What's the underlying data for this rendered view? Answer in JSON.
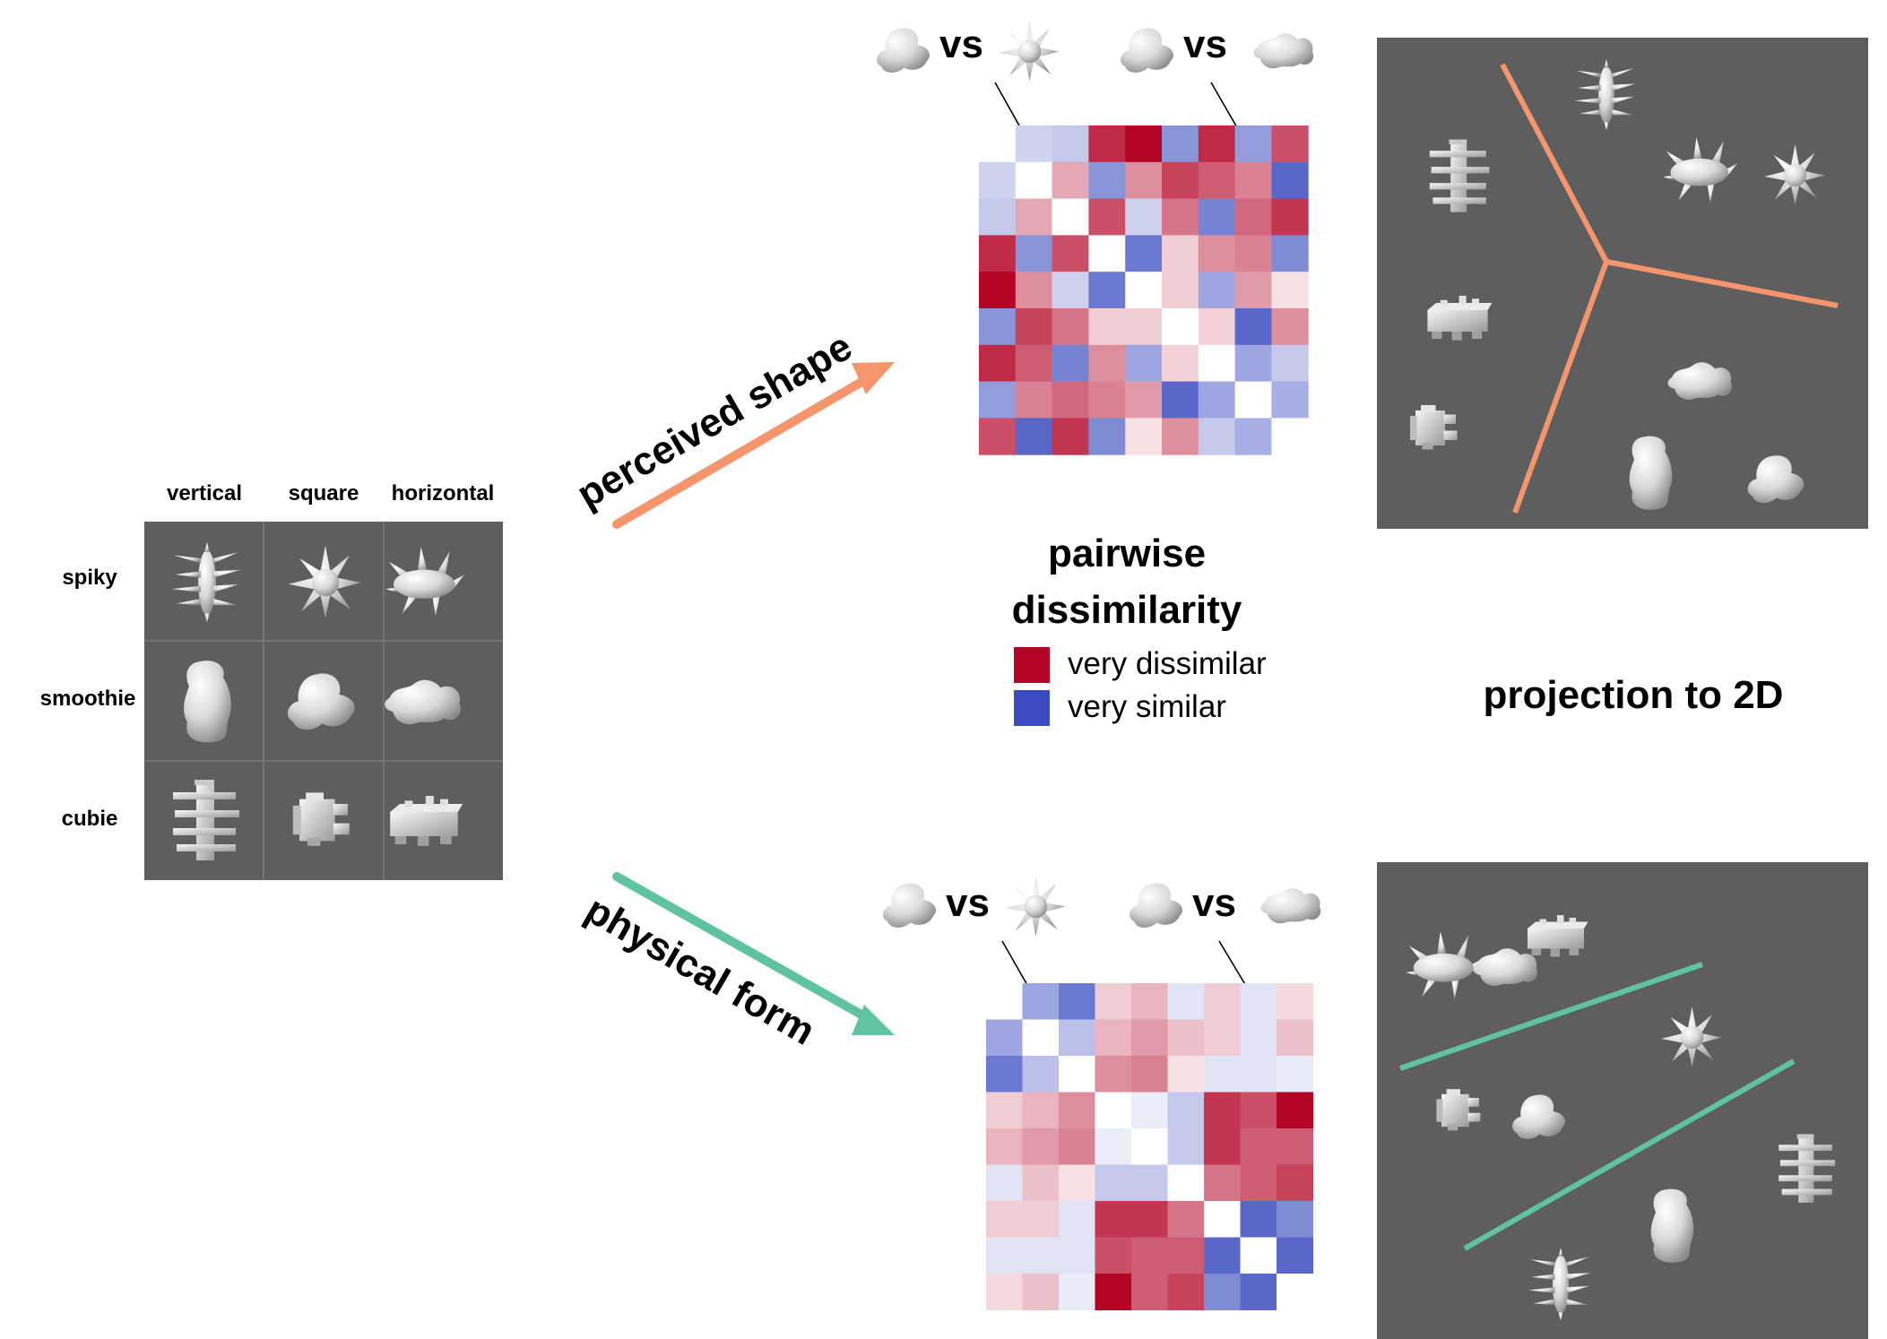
{
  "grid": {
    "columns": [
      "vertical",
      "square",
      "horizontal"
    ],
    "rows": [
      "spiky",
      "smoothie",
      "cubie"
    ]
  },
  "arrows": {
    "top_label": "perceived shape",
    "top_color": "#f4956c",
    "bottom_label": "physical form",
    "bottom_color": "#5fc2a0"
  },
  "comparisons": {
    "vs": "vs"
  },
  "legend": {
    "title_line1": "pairwise",
    "title_line2": "dissimilarity",
    "high_label": "very dissimilar",
    "low_label": "very similar",
    "high_color": "#b40426",
    "low_color": "#3b4cc0"
  },
  "projection": {
    "label": "projection to 2D",
    "panel_color": "#5e5e5e"
  },
  "matrices": {
    "perceived": [
      [
        0,
        -0.25,
        -0.3,
        0.85,
        1.0,
        -0.6,
        0.85,
        -0.55,
        0.7
      ],
      [
        -0.25,
        0,
        0.35,
        -0.6,
        0.45,
        0.75,
        0.65,
        0.5,
        -0.85
      ],
      [
        -0.3,
        0.35,
        0,
        0.7,
        -0.25,
        0.55,
        -0.7,
        0.6,
        0.8
      ],
      [
        0.85,
        -0.6,
        0.7,
        0,
        -0.75,
        0.2,
        0.45,
        0.5,
        -0.65
      ],
      [
        1.0,
        0.45,
        -0.25,
        -0.75,
        0,
        0.2,
        -0.5,
        0.4,
        0.12
      ],
      [
        -0.6,
        0.75,
        0.55,
        0.2,
        0.2,
        0,
        0.18,
        -0.85,
        0.45
      ],
      [
        0.85,
        0.65,
        -0.7,
        0.45,
        -0.5,
        0.18,
        0,
        -0.5,
        -0.3
      ],
      [
        -0.55,
        0.5,
        0.6,
        0.5,
        0.4,
        -0.85,
        -0.5,
        0,
        -0.45
      ],
      [
        0.7,
        -0.85,
        0.8,
        -0.65,
        0.12,
        0.45,
        -0.3,
        -0.45,
        0
      ]
    ],
    "physical": [
      [
        0,
        -0.5,
        -0.75,
        0.2,
        0.3,
        -0.15,
        0.2,
        -0.15,
        0.15
      ],
      [
        -0.5,
        0,
        -0.35,
        0.3,
        0.4,
        0.25,
        0.2,
        -0.15,
        0.25
      ],
      [
        -0.75,
        -0.35,
        0,
        0.45,
        0.5,
        0.12,
        -0.15,
        -0.15,
        -0.12
      ],
      [
        0.2,
        0.3,
        0.45,
        0,
        -0.1,
        -0.3,
        0.8,
        0.7,
        1.0
      ],
      [
        0.3,
        0.4,
        0.5,
        -0.1,
        0,
        -0.3,
        0.8,
        0.65,
        0.65
      ],
      [
        -0.15,
        0.25,
        0.12,
        -0.3,
        -0.3,
        0,
        0.55,
        0.65,
        0.75
      ],
      [
        0.2,
        0.2,
        -0.15,
        0.8,
        0.8,
        0.55,
        0,
        -0.85,
        -0.65
      ],
      [
        -0.15,
        -0.15,
        -0.15,
        0.7,
        0.65,
        0.65,
        -0.85,
        0,
        -0.85
      ],
      [
        0.15,
        0.25,
        -0.12,
        1.0,
        0.65,
        0.75,
        -0.65,
        -0.85,
        0
      ]
    ]
  }
}
